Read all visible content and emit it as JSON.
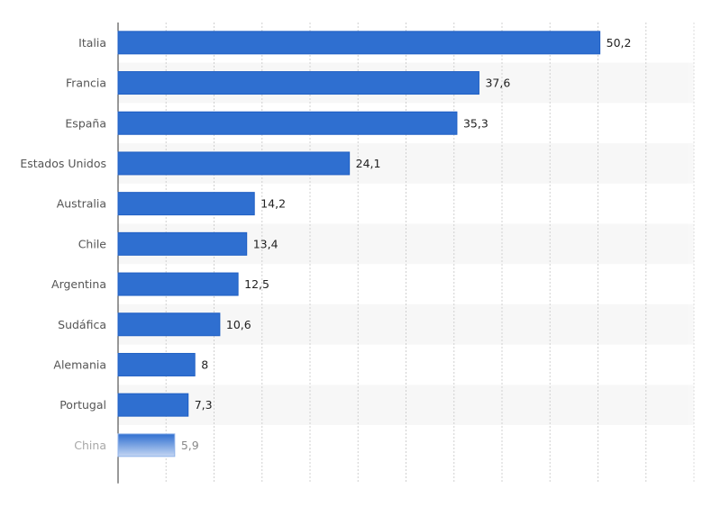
{
  "chart_data": {
    "type": "bar",
    "orientation": "horizontal",
    "categories": [
      "Italia",
      "Francia",
      "España",
      "Estados Unidos",
      "Australia",
      "Chile",
      "Argentina",
      "Sudáfica",
      "Alemania",
      "Portugal",
      "China"
    ],
    "values": [
      50.2,
      37.6,
      35.3,
      24.1,
      14.2,
      13.4,
      12.5,
      10.6,
      8,
      7.3,
      5.9
    ],
    "data_labels": [
      "50,2",
      "37,6",
      "35,3",
      "24,1",
      "14,2",
      "13,4",
      "12,5",
      "10,6",
      "8",
      "7,3",
      "5,9"
    ],
    "title": "",
    "xlabel": "",
    "ylabel": "",
    "xlim": [
      0,
      60
    ],
    "grid": true,
    "gridline_interval": 5,
    "bar_color": "#2f6fd0",
    "faded_last_row": true
  }
}
